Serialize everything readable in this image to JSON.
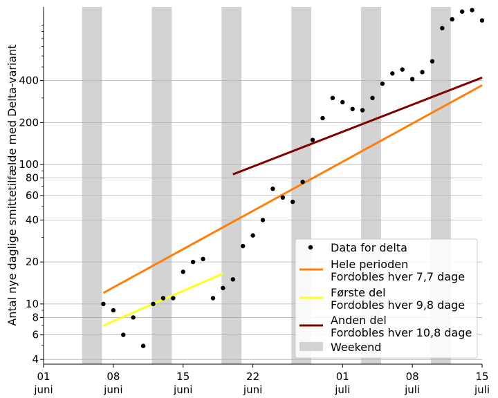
{
  "chart_data": {
    "type": "scatter",
    "ylabel": "Antal nye daglige smittetilfælde med Delta-variant",
    "yscale": "log",
    "ylim": [
      3.7,
      1350
    ],
    "xlim": [
      "2021-06-01",
      "2021-07-15"
    ],
    "grid": "y-major",
    "legend_position": "bottom-right",
    "x_ticks": [
      {
        "date": "2021-06-01",
        "line1": "01",
        "line2": "juni"
      },
      {
        "date": "2021-06-08",
        "line1": "08",
        "line2": "juni"
      },
      {
        "date": "2021-06-15",
        "line1": "15",
        "line2": "juni"
      },
      {
        "date": "2021-06-22",
        "line1": "22",
        "line2": "juni"
      },
      {
        "date": "2021-07-01",
        "line1": "01",
        "line2": "juli"
      },
      {
        "date": "2021-07-08",
        "line1": "08",
        "line2": "juli"
      },
      {
        "date": "2021-07-15",
        "line1": "15",
        "line2": "juli"
      }
    ],
    "y_ticks": [
      {
        "value": 4,
        "label": "4"
      },
      {
        "value": 6,
        "label": "6"
      },
      {
        "value": 8,
        "label": "8"
      },
      {
        "value": 10,
        "label": "10"
      },
      {
        "value": 20,
        "label": "20"
      },
      {
        "value": 40,
        "label": "40"
      },
      {
        "value": 60,
        "label": "60"
      },
      {
        "value": 80,
        "label": "80"
      },
      {
        "value": 100,
        "label": "100"
      },
      {
        "value": 200,
        "label": "200"
      },
      {
        "value": 400,
        "label": "400"
      }
    ],
    "weekends": [
      [
        "2021-06-05",
        "2021-06-07"
      ],
      [
        "2021-06-12",
        "2021-06-14"
      ],
      [
        "2021-06-19",
        "2021-06-21"
      ],
      [
        "2021-06-26",
        "2021-06-28"
      ],
      [
        "2021-07-03",
        "2021-07-05"
      ],
      [
        "2021-07-10",
        "2021-07-12"
      ]
    ],
    "points": {
      "name": "Data for delta",
      "color": "#000000",
      "x": [
        "2021-06-07",
        "2021-06-08",
        "2021-06-09",
        "2021-06-10",
        "2021-06-11",
        "2021-06-12",
        "2021-06-13",
        "2021-06-14",
        "2021-06-15",
        "2021-06-16",
        "2021-06-17",
        "2021-06-18",
        "2021-06-19",
        "2021-06-20",
        "2021-06-21",
        "2021-06-22",
        "2021-06-23",
        "2021-06-24",
        "2021-06-25",
        "2021-06-26",
        "2021-06-27",
        "2021-06-28",
        "2021-06-29",
        "2021-06-30",
        "2021-07-01",
        "2021-07-02",
        "2021-07-03",
        "2021-07-04",
        "2021-07-05",
        "2021-07-06",
        "2021-07-07",
        "2021-07-08",
        "2021-07-09",
        "2021-07-10",
        "2021-07-11",
        "2021-07-12",
        "2021-07-13",
        "2021-07-14",
        "2021-07-15"
      ],
      "y": [
        10,
        9,
        6,
        8,
        5,
        10,
        11,
        11,
        17,
        20,
        21,
        11,
        13,
        15,
        26,
        31,
        40,
        67,
        58,
        54,
        75,
        150,
        215,
        300,
        280,
        250,
        245,
        300,
        380,
        450,
        480,
        410,
        460,
        550,
        950,
        1100,
        1250,
        1280,
        1080
      ]
    },
    "lines": [
      {
        "name": "Hele perioden",
        "name2": "Fordobles hver 7,7 dage",
        "color": "#ff7f0e",
        "x": [
          "2021-06-07",
          "2021-07-15"
        ],
        "y": [
          12,
          370
        ]
      },
      {
        "name": "Første del",
        "name2": "Fordobles hver 9,8 dage",
        "color": "#ffff22",
        "x": [
          "2021-06-07",
          "2021-06-19"
        ],
        "y": [
          7,
          16.5
        ]
      },
      {
        "name": "Anden del",
        "name2": "Fordobles hver 10,8 dage",
        "color": "#800000",
        "x": [
          "2021-06-20",
          "2021-07-15"
        ],
        "y": [
          85,
          420
        ]
      }
    ],
    "legend": [
      {
        "kind": "marker",
        "label": "Data for delta",
        "color": "#000000"
      },
      {
        "kind": "line",
        "label": "Hele perioden",
        "label2": "Fordobles hver 7,7 dage",
        "color": "#ff7f0e"
      },
      {
        "kind": "line",
        "label": "Første del",
        "label2": "Fordobles hver 9,8 dage",
        "color": "#ffff22"
      },
      {
        "kind": "line",
        "label": "Anden del",
        "label2": "Fordobles hver 10,8 dage",
        "color": "#800000"
      },
      {
        "kind": "patch",
        "label": "Weekend",
        "color": "#d3d3d3"
      }
    ]
  }
}
